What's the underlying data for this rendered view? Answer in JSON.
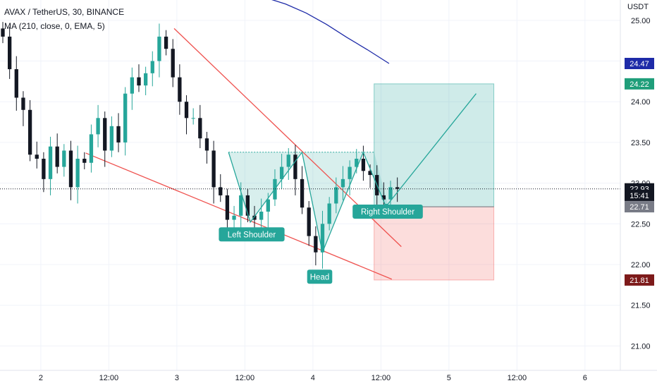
{
  "header": {
    "title": "AVAX / TetherUS, 30, BINANCE",
    "indicator": "MA (210, close, 0, EMA, 5)"
  },
  "price_axis": {
    "currency": "USDT",
    "ticks": [
      "25.00",
      "24.50",
      "24.00",
      "23.50",
      "23.00",
      "22.50",
      "22.00",
      "21.50",
      "21.00"
    ],
    "tick_values": [
      25.0,
      24.5,
      24.0,
      23.5,
      23.0,
      22.5,
      22.0,
      21.5,
      21.0
    ]
  },
  "time_axis": {
    "ticks": [
      "2",
      "12:00",
      "3",
      "12:00",
      "4",
      "12:00",
      "5",
      "12:00",
      "6"
    ]
  },
  "badges": [
    {
      "text": "24.47",
      "value": 24.47,
      "color": "#1e2ba8"
    },
    {
      "text": "24.22",
      "value": 24.22,
      "color": "#1f9e7a"
    },
    {
      "text": "22.93",
      "value": 22.93,
      "color": "#131722"
    },
    {
      "text": "15:41",
      "value": 22.85,
      "color": "#131722"
    },
    {
      "text": "22.71",
      "value": 22.71,
      "color": "#787b86"
    },
    {
      "text": "21.81",
      "value": 21.81,
      "color": "#7d1a1a"
    }
  ],
  "annotations": [
    {
      "text": "Left Shoulder",
      "x": 18.5,
      "y": 22.37
    },
    {
      "text": "Head",
      "x": 23.5,
      "y": 21.85
    },
    {
      "text": "Right Shoulder",
      "x": 28.5,
      "y": 22.65
    }
  ],
  "colors": {
    "up": "#26a69a",
    "down": "#131722",
    "ma": "#1e2ba8",
    "trendline": "#ef5350",
    "pattern": "#26a69a",
    "target_zone": "#26a69a",
    "stop_zone": "#ef5350"
  },
  "chart_data": {
    "type": "line",
    "title": "AVAX / TetherUS, 30, BINANCE",
    "xlabel": "",
    "ylabel": "USDT",
    "ylim": [
      20.7,
      25.25
    ],
    "xlim": [
      0,
      45.6
    ],
    "x_ticks": [
      {
        "x": 3,
        "label": "2"
      },
      {
        "x": 8,
        "label": "12:00"
      },
      {
        "x": 13,
        "label": "3"
      },
      {
        "x": 18,
        "label": "12:00"
      },
      {
        "x": 23,
        "label": "4"
      },
      {
        "x": 28,
        "label": "12:00"
      },
      {
        "x": 33,
        "label": "5"
      },
      {
        "x": 38,
        "label": "12:00"
      },
      {
        "x": 43,
        "label": "6"
      }
    ],
    "price_series": {
      "name": "AVAX / TetherUS",
      "x": [
        0,
        0.5,
        1,
        1.5,
        2,
        2.5,
        3,
        3.5,
        4,
        4.5,
        5,
        5.5,
        6,
        6.5,
        7,
        7.5,
        8,
        8.5,
        9,
        9.5,
        10,
        10.5,
        11,
        11.5,
        12,
        12.5,
        13,
        13.5,
        14,
        14.5,
        15,
        15.5,
        16,
        16.5,
        17,
        17.5,
        18,
        18.5,
        19,
        19.5,
        20,
        20.5,
        21,
        21.5,
        22,
        22.5,
        23,
        23.5,
        24,
        24.5,
        25,
        25.5,
        26,
        26.5,
        27,
        27.5,
        28,
        28.5,
        29
      ],
      "close": [
        24.8,
        24.4,
        24.05,
        23.9,
        23.35,
        23.3,
        23.05,
        23.45,
        23.2,
        23.4,
        22.95,
        23.3,
        23.25,
        23.6,
        23.8,
        23.4,
        23.7,
        23.5,
        24.1,
        24.3,
        24.2,
        24.35,
        24.5,
        24.8,
        24.65,
        24.3,
        24.0,
        23.8,
        23.8,
        23.55,
        23.4,
        22.95,
        22.85,
        22.55,
        22.6,
        22.85,
        22.6,
        22.55,
        22.65,
        22.8,
        23.05,
        23.2,
        23.35,
        23.05,
        22.7,
        22.35,
        22.15,
        22.5,
        22.75,
        22.95,
        23.05,
        23.2,
        23.3,
        23.15,
        23.1,
        22.85,
        22.8,
        22.95,
        22.93
      ]
    },
    "ma_series": {
      "name": "MA (210, close, 0, EMA, 5)",
      "x": [
        19.5,
        21,
        22.5,
        24,
        25.5,
        27,
        28.6
      ],
      "y": [
        25.28,
        25.2,
        25.09,
        24.95,
        24.79,
        24.64,
        24.47
      ]
    },
    "upper_trendline": {
      "x": [
        12.8,
        29.5
      ],
      "y": [
        24.9,
        22.22
      ]
    },
    "lower_trendline": {
      "x": [
        6.3,
        28.8
      ],
      "y": [
        23.37,
        21.82
      ]
    },
    "neckline": {
      "y": 23.38,
      "x": [
        16.8,
        27.5
      ]
    },
    "pattern_path": {
      "x": [
        16.8,
        18.4,
        22.2,
        23.7,
        26.7,
        28.3,
        28.5,
        35
      ],
      "y": [
        23.38,
        22.52,
        23.38,
        22.15,
        23.38,
        22.74,
        22.74,
        24.1
      ]
    },
    "position": {
      "x_start": 27.5,
      "x_end": 36.3,
      "target": 24.22,
      "entry": 22.71,
      "stop": 21.81
    },
    "current_price": 22.93
  }
}
